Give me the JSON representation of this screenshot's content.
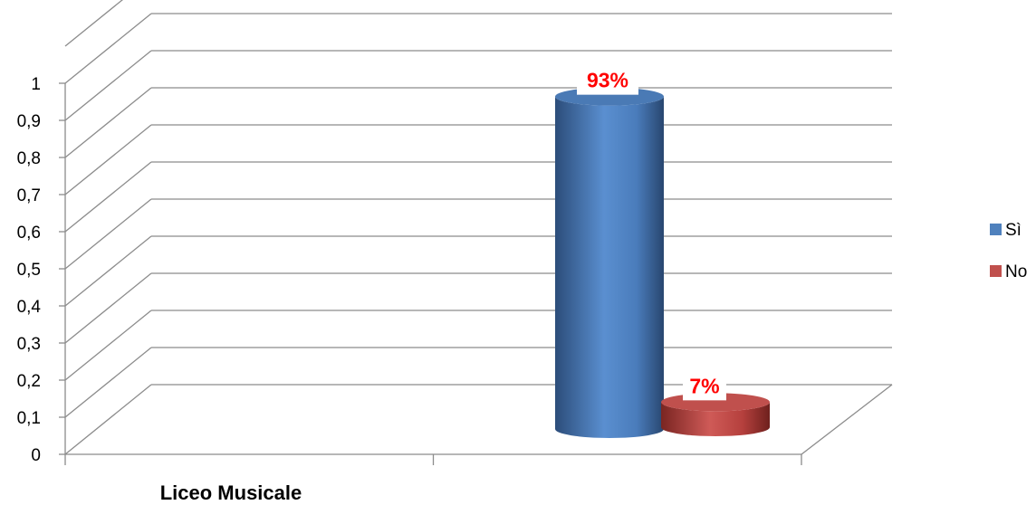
{
  "chart_data": {
    "type": "bar",
    "style": "3d-cylinder",
    "categories": [
      "Liceo Musicale"
    ],
    "series": [
      {
        "name": "Sì",
        "values": [
          0.93
        ],
        "label": "93%",
        "color": "#4f81bd"
      },
      {
        "name": "No",
        "values": [
          0.07
        ],
        "label": "7%",
        "color": "#c0504d"
      }
    ],
    "y_ticks": [
      "0",
      "0,1",
      "0,2",
      "0,3",
      "0,4",
      "0,5",
      "0,6",
      "0,7",
      "0,8",
      "0,9",
      "1"
    ],
    "ylim": [
      0,
      1
    ],
    "grid": true,
    "legend": "right",
    "data_label_color": "#ff0000"
  }
}
